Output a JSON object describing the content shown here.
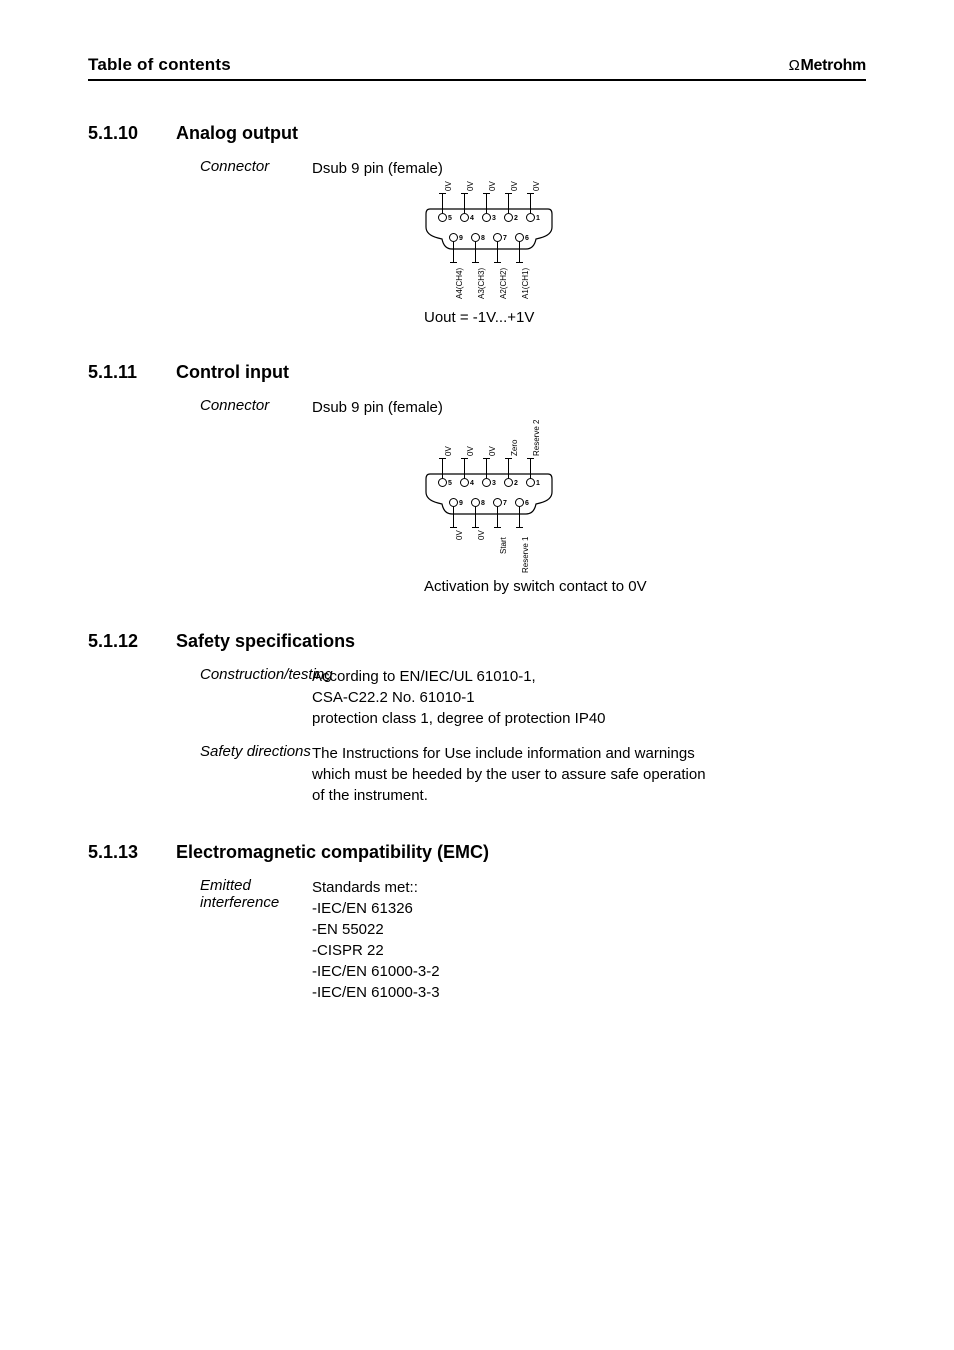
{
  "header": {
    "title": "Table of contents",
    "logo_text": "Metrohm"
  },
  "sections": {
    "analog_output": {
      "number": "5.1.10",
      "title": "Analog output",
      "connector_label": "Connector",
      "connector_value": "Dsub 9 pin (female)",
      "uout": "Uout = -1V...+1V",
      "diagram": {
        "shell_color": "#000000",
        "top_pins": [
          {
            "n": "5"
          },
          {
            "n": "4"
          },
          {
            "n": "3"
          },
          {
            "n": "2"
          },
          {
            "n": "1"
          }
        ],
        "bottom_pins": [
          {
            "n": "9"
          },
          {
            "n": "8"
          },
          {
            "n": "7"
          },
          {
            "n": "6"
          }
        ],
        "top_labels": [
          "0V",
          "0V",
          "0V",
          "0V",
          "0V"
        ],
        "bottom_labels": [
          "A4(CH4)",
          "A3(CH3)",
          "A2(CH2)",
          "A1(CH1)"
        ]
      }
    },
    "control_input": {
      "number": "5.1.11",
      "title": "Control input",
      "connector_label": "Connector",
      "connector_value": "Dsub 9 pin (female)",
      "activation": "Activation by switch contact to 0V",
      "diagram": {
        "top_pins": [
          {
            "n": "5"
          },
          {
            "n": "4"
          },
          {
            "n": "3"
          },
          {
            "n": "2"
          },
          {
            "n": "1"
          }
        ],
        "bottom_pins": [
          {
            "n": "9"
          },
          {
            "n": "8"
          },
          {
            "n": "7"
          },
          {
            "n": "6"
          }
        ],
        "top_labels": [
          "0V",
          "0V",
          "0V",
          "Zero",
          "Reserve 2"
        ],
        "bottom_labels": [
          "0V",
          "0V",
          "Start",
          "Reserve 1"
        ]
      }
    },
    "safety": {
      "number": "5.1.12",
      "title": "Safety specifications",
      "rows": [
        {
          "label": "Construction/testing",
          "value": "According to EN/IEC/UL 61010-1,\nCSA-C22.2 No. 61010-1\nprotection class 1, degree of protection IP40"
        },
        {
          "label": "Safety directions",
          "value": "The Instructions for Use include information and warnings which must be heeded by the user to assure safe operation of the instrument."
        }
      ]
    },
    "emc": {
      "number": "5.1.13",
      "title": "Electromagnetic compatibility (EMC)",
      "rows": [
        {
          "label": "Emitted interference",
          "value": "Standards met::",
          "list": [
            "-IEC/EN 61326",
            "-EN 55022",
            "-CISPR 22",
            "-IEC/EN 61000-3-2",
            "-IEC/EN 61000-3-3"
          ]
        }
      ]
    }
  }
}
